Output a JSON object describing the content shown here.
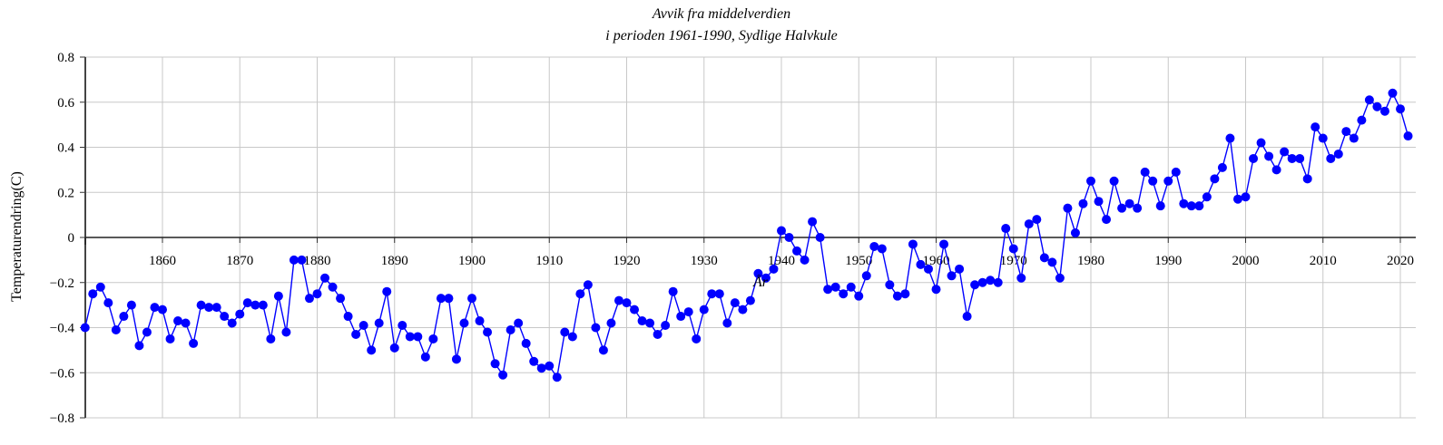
{
  "chart_data": {
    "type": "line",
    "title": "Avvik fra middelverdien",
    "subtitle": "i perioden 1961-1990, Sydlige Halvkule",
    "xlabel": "År",
    "ylabel": "Temperaturendring(C)",
    "xlim": [
      1850,
      2022
    ],
    "ylim": [
      -0.8,
      0.8
    ],
    "x_ticks": [
      "1860",
      "1870",
      "1880",
      "1890",
      "1900",
      "1910",
      "1920",
      "1930",
      "1940",
      "1950",
      "1960",
      "1970",
      "1980",
      "1990",
      "2000",
      "2010",
      "2020"
    ],
    "y_ticks": [
      "0.8",
      "0.6",
      "0.4",
      "0.2",
      "0",
      "-0.2",
      "-0.4",
      "-0.6",
      "-0.8"
    ],
    "grid": true,
    "legend": "none",
    "series_color": "#0000ff",
    "x": [
      1850,
      1851,
      1852,
      1853,
      1854,
      1855,
      1856,
      1857,
      1858,
      1859,
      1860,
      1861,
      1862,
      1863,
      1864,
      1865,
      1866,
      1867,
      1868,
      1869,
      1870,
      1871,
      1872,
      1873,
      1874,
      1875,
      1876,
      1877,
      1878,
      1879,
      1880,
      1881,
      1882,
      1883,
      1884,
      1885,
      1886,
      1887,
      1888,
      1889,
      1890,
      1891,
      1892,
      1893,
      1894,
      1895,
      1896,
      1897,
      1898,
      1899,
      1900,
      1901,
      1902,
      1903,
      1904,
      1905,
      1906,
      1907,
      1908,
      1909,
      1910,
      1911,
      1912,
      1913,
      1914,
      1915,
      1916,
      1917,
      1918,
      1919,
      1920,
      1921,
      1922,
      1923,
      1924,
      1925,
      1926,
      1927,
      1928,
      1929,
      1930,
      1931,
      1932,
      1933,
      1934,
      1935,
      1936,
      1937,
      1938,
      1939,
      1940,
      1941,
      1942,
      1943,
      1944,
      1945,
      1946,
      1947,
      1948,
      1949,
      1950,
      1951,
      1952,
      1953,
      1954,
      1955,
      1956,
      1957,
      1958,
      1959,
      1960,
      1961,
      1962,
      1963,
      1964,
      1965,
      1966,
      1967,
      1968,
      1969,
      1970,
      1971,
      1972,
      1973,
      1974,
      1975,
      1976,
      1977,
      1978,
      1979,
      1980,
      1981,
      1982,
      1983,
      1984,
      1985,
      1986,
      1987,
      1988,
      1989,
      1990,
      1991,
      1992,
      1993,
      1994,
      1995,
      1996,
      1997,
      1998,
      1999,
      2000,
      2001,
      2002,
      2003,
      2004,
      2005,
      2006,
      2007,
      2008,
      2009,
      2010,
      2011,
      2012,
      2013,
      2014,
      2015,
      2016,
      2017,
      2018,
      2019,
      2020,
      2021
    ],
    "y": [
      -0.4,
      -0.25,
      -0.22,
      -0.29,
      -0.41,
      -0.35,
      -0.3,
      -0.48,
      -0.42,
      -0.31,
      -0.32,
      -0.45,
      -0.37,
      -0.38,
      -0.47,
      -0.3,
      -0.31,
      -0.31,
      -0.35,
      -0.38,
      -0.34,
      -0.29,
      -0.3,
      -0.3,
      -0.45,
      -0.26,
      -0.42,
      -0.1,
      -0.1,
      -0.27,
      -0.25,
      -0.18,
      -0.22,
      -0.27,
      -0.35,
      -0.43,
      -0.39,
      -0.5,
      -0.38,
      -0.24,
      -0.49,
      -0.39,
      -0.44,
      -0.44,
      -0.53,
      -0.45,
      -0.27,
      -0.27,
      -0.54,
      -0.38,
      -0.27,
      -0.37,
      -0.42,
      -0.56,
      -0.61,
      -0.41,
      -0.38,
      -0.47,
      -0.55,
      -0.58,
      -0.57,
      -0.62,
      -0.42,
      -0.44,
      -0.25,
      -0.21,
      -0.4,
      -0.5,
      -0.38,
      -0.28,
      -0.29,
      -0.32,
      -0.37,
      -0.38,
      -0.43,
      -0.39,
      -0.24,
      -0.35,
      -0.33,
      -0.45,
      -0.32,
      -0.25,
      -0.25,
      -0.38,
      -0.29,
      -0.32,
      -0.28,
      -0.16,
      -0.18,
      -0.14,
      0.03,
      0.0,
      -0.06,
      -0.1,
      0.07,
      0.0,
      -0.23,
      -0.22,
      -0.25,
      -0.22,
      -0.26,
      -0.17,
      -0.04,
      -0.05,
      -0.21,
      -0.26,
      -0.25,
      -0.03,
      -0.12,
      -0.14,
      -0.23,
      -0.03,
      -0.17,
      -0.14,
      -0.35,
      -0.21,
      -0.2,
      -0.19,
      -0.2,
      0.04,
      -0.05,
      -0.18,
      0.06,
      0.08,
      -0.09,
      -0.11,
      -0.18,
      0.13,
      0.02,
      0.15,
      0.25,
      0.16,
      0.08,
      0.25,
      0.13,
      0.15,
      0.13,
      0.29,
      0.25,
      0.14,
      0.25,
      0.29,
      0.15,
      0.14,
      0.14,
      0.18,
      0.26,
      0.31,
      0.44,
      0.17,
      0.18,
      0.35,
      0.42,
      0.36,
      0.3,
      0.38,
      0.35,
      0.35,
      0.26,
      0.49,
      0.44,
      0.35,
      0.37,
      0.47,
      0.44,
      0.52,
      0.61,
      0.58,
      0.56,
      0.64,
      0.57,
      0.45
    ]
  }
}
